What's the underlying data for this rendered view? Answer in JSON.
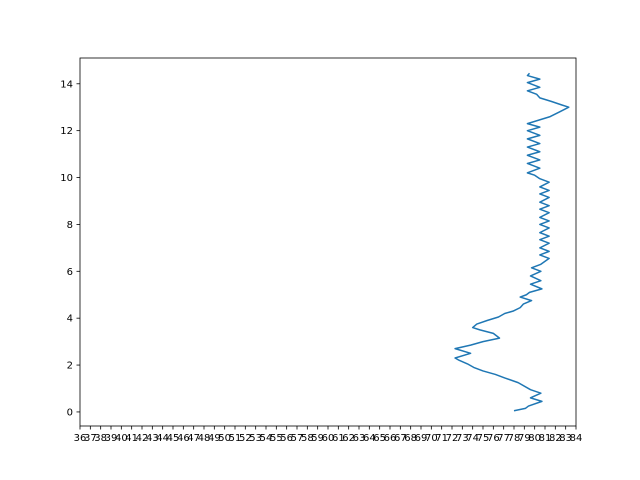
{
  "chart_data": {
    "type": "line",
    "title": "",
    "xlabel": "",
    "ylabel": "",
    "grid": false,
    "legend": "none",
    "xlim": [
      36,
      84
    ],
    "ylim": [
      -0.6,
      15.1
    ],
    "xticks": [
      36,
      37,
      38,
      39,
      40,
      41,
      42,
      43,
      44,
      45,
      46,
      47,
      48,
      49,
      50,
      51,
      52,
      53,
      54,
      55,
      56,
      57,
      58,
      59,
      60,
      61,
      62,
      63,
      64,
      65,
      66,
      67,
      68,
      69,
      70,
      71,
      72,
      73,
      74,
      75,
      76,
      77,
      78,
      79,
      80,
      81,
      82,
      83,
      84
    ],
    "yticks": [
      0,
      2,
      4,
      6,
      8,
      10,
      12,
      14
    ],
    "series": [
      {
        "color": "#1f77b4",
        "points": [
          [
            78,
            0.05
          ],
          [
            79.1,
            0.15
          ],
          [
            79.4,
            0.25
          ],
          [
            80.7,
            0.45
          ],
          [
            79.6,
            0.6
          ],
          [
            80.6,
            0.8
          ],
          [
            79.6,
            0.95
          ],
          [
            78.4,
            1.25
          ],
          [
            77.1,
            1.45
          ],
          [
            76.2,
            1.6
          ],
          [
            75.0,
            1.75
          ],
          [
            74.1,
            1.9
          ],
          [
            73.5,
            2.05
          ],
          [
            72.7,
            2.2
          ],
          [
            72.3,
            2.3
          ],
          [
            73.8,
            2.5
          ],
          [
            72.3,
            2.7
          ],
          [
            73.8,
            2.85
          ],
          [
            75.0,
            3.0
          ],
          [
            76.6,
            3.15
          ],
          [
            76.0,
            3.35
          ],
          [
            74.7,
            3.5
          ],
          [
            74.0,
            3.6
          ],
          [
            74.4,
            3.75
          ],
          [
            75.4,
            3.9
          ],
          [
            76.5,
            4.05
          ],
          [
            77.1,
            4.2
          ],
          [
            77.9,
            4.3
          ],
          [
            78.6,
            4.45
          ],
          [
            78.9,
            4.6
          ],
          [
            79.7,
            4.75
          ],
          [
            78.6,
            4.9
          ],
          [
            79.2,
            5.0
          ],
          [
            79.5,
            5.1
          ],
          [
            80.7,
            5.25
          ],
          [
            79.6,
            5.45
          ],
          [
            80.6,
            5.6
          ],
          [
            79.6,
            5.8
          ],
          [
            80.6,
            6.0
          ],
          [
            79.7,
            6.15
          ],
          [
            80.6,
            6.3
          ],
          [
            81.4,
            6.55
          ],
          [
            80.5,
            6.7
          ],
          [
            81.4,
            6.85
          ],
          [
            80.5,
            7.0
          ],
          [
            81.4,
            7.2
          ],
          [
            80.5,
            7.35
          ],
          [
            81.4,
            7.5
          ],
          [
            80.5,
            7.65
          ],
          [
            81.4,
            7.85
          ],
          [
            80.5,
            8.0
          ],
          [
            81.4,
            8.15
          ],
          [
            80.5,
            8.3
          ],
          [
            81.4,
            8.5
          ],
          [
            80.5,
            8.65
          ],
          [
            81.4,
            8.8
          ],
          [
            80.5,
            8.95
          ],
          [
            81.4,
            9.15
          ],
          [
            80.5,
            9.3
          ],
          [
            81.4,
            9.45
          ],
          [
            80.5,
            9.6
          ],
          [
            81.4,
            9.8
          ],
          [
            80.5,
            9.95
          ],
          [
            80.0,
            10.1
          ],
          [
            79.3,
            10.2
          ],
          [
            80.5,
            10.4
          ],
          [
            79.3,
            10.6
          ],
          [
            80.5,
            10.75
          ],
          [
            79.3,
            10.95
          ],
          [
            80.5,
            11.1
          ],
          [
            79.3,
            11.3
          ],
          [
            80.5,
            11.45
          ],
          [
            79.3,
            11.65
          ],
          [
            80.5,
            11.8
          ],
          [
            79.3,
            12.0
          ],
          [
            80.5,
            12.15
          ],
          [
            79.3,
            12.3
          ],
          [
            80.4,
            12.45
          ],
          [
            81.5,
            12.6
          ],
          [
            82.4,
            12.8
          ],
          [
            83.3,
            13.0
          ],
          [
            82.6,
            13.1
          ],
          [
            81.6,
            13.25
          ],
          [
            80.5,
            13.4
          ],
          [
            80.2,
            13.55
          ],
          [
            79.3,
            13.7
          ],
          [
            80.5,
            13.85
          ],
          [
            79.3,
            14.05
          ],
          [
            80.5,
            14.2
          ],
          [
            79.3,
            14.35
          ],
          [
            79.5,
            14.45
          ]
        ]
      }
    ]
  }
}
